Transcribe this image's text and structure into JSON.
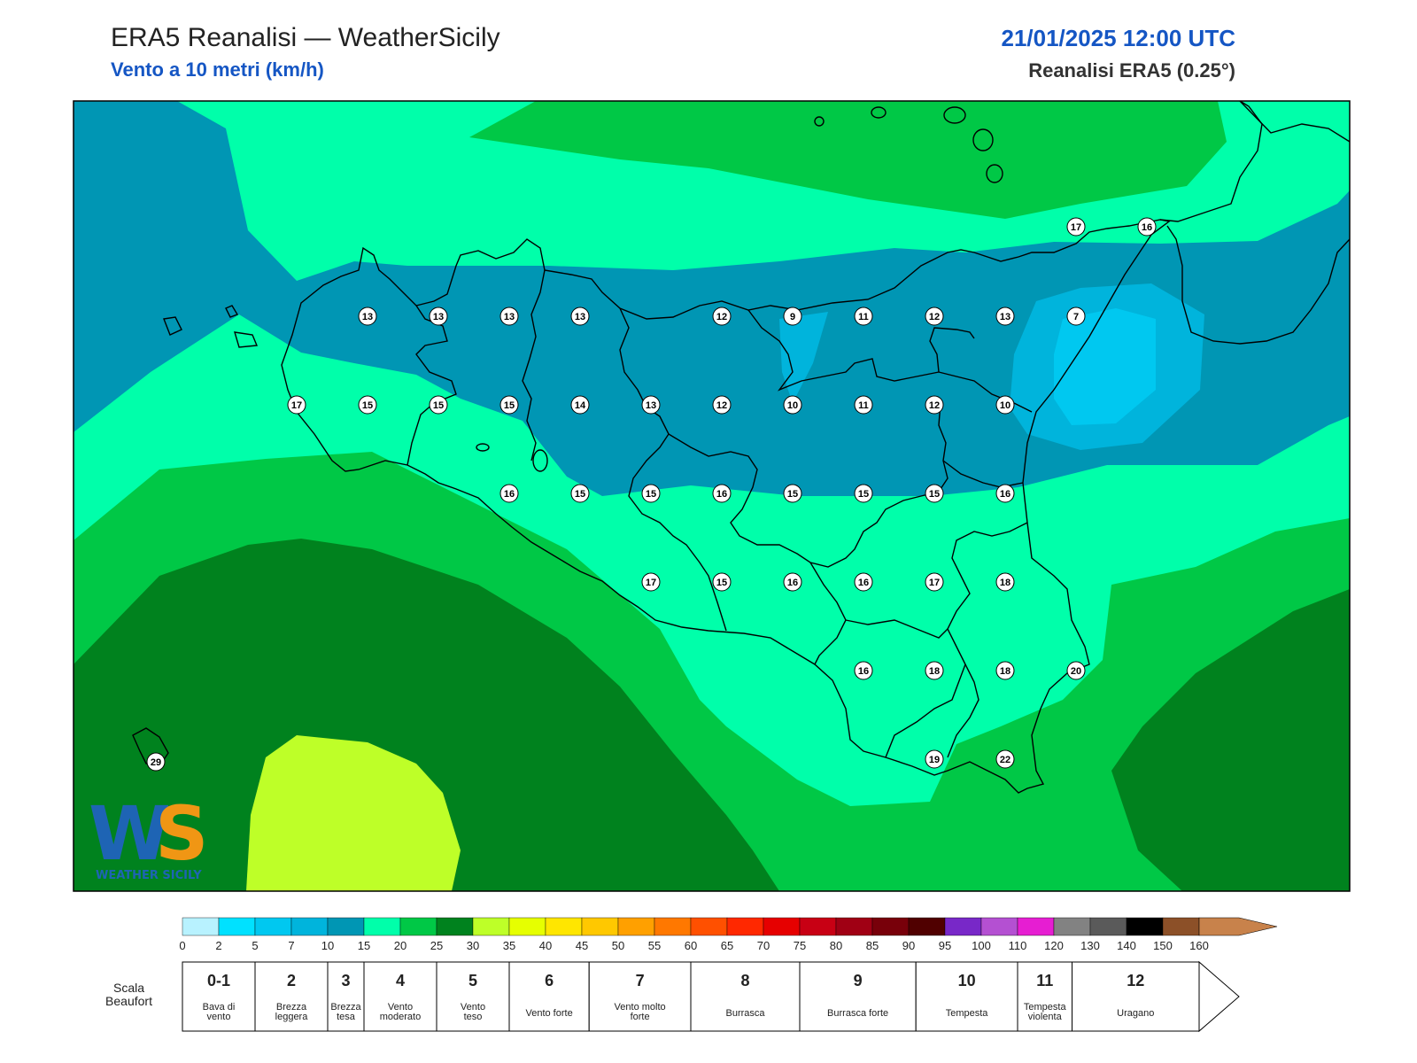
{
  "header": {
    "title": "ERA5 Reanalisi — WeatherSicily",
    "subtitle": "Vento a 10 metri (km/h)",
    "datetime": "21/01/2025 12:00 UTC",
    "source": "Reanalisi ERA5 (0.25°)"
  },
  "logo": {
    "text": "WEATHER SICILY",
    "letters": "WS"
  },
  "stations": [
    {
      "value": "13",
      "col": 4,
      "row": 0
    },
    {
      "value": "13",
      "col": 5,
      "row": 0
    },
    {
      "value": "13",
      "col": 6,
      "row": 0
    },
    {
      "value": "13",
      "col": 7,
      "row": 0
    },
    {
      "value": "12",
      "col": 9,
      "row": 0
    },
    {
      "value": "9",
      "col": 10,
      "row": 0
    },
    {
      "value": "11",
      "col": 11,
      "row": 0
    },
    {
      "value": "12",
      "col": 12,
      "row": 0
    },
    {
      "value": "13",
      "col": 13,
      "row": 0
    },
    {
      "value": "7",
      "col": 14,
      "row": 0
    },
    {
      "value": "17",
      "col": 3,
      "row": 1
    },
    {
      "value": "15",
      "col": 4,
      "row": 1
    },
    {
      "value": "15",
      "col": 5,
      "row": 1
    },
    {
      "value": "15",
      "col": 6,
      "row": 1
    },
    {
      "value": "14",
      "col": 7,
      "row": 1
    },
    {
      "value": "13",
      "col": 8,
      "row": 1
    },
    {
      "value": "12",
      "col": 9,
      "row": 1
    },
    {
      "value": "10",
      "col": 10,
      "row": 1
    },
    {
      "value": "11",
      "col": 11,
      "row": 1
    },
    {
      "value": "12",
      "col": 12,
      "row": 1
    },
    {
      "value": "10",
      "col": 13,
      "row": 1
    },
    {
      "value": "16",
      "col": 6,
      "row": 2
    },
    {
      "value": "15",
      "col": 7,
      "row": 2
    },
    {
      "value": "15",
      "col": 8,
      "row": 2
    },
    {
      "value": "16",
      "col": 9,
      "row": 2
    },
    {
      "value": "15",
      "col": 10,
      "row": 2
    },
    {
      "value": "15",
      "col": 11,
      "row": 2
    },
    {
      "value": "15",
      "col": 12,
      "row": 2
    },
    {
      "value": "16",
      "col": 13,
      "row": 2
    },
    {
      "value": "17",
      "col": 8,
      "row": 3
    },
    {
      "value": "15",
      "col": 9,
      "row": 3
    },
    {
      "value": "16",
      "col": 10,
      "row": 3
    },
    {
      "value": "16",
      "col": 11,
      "row": 3
    },
    {
      "value": "17",
      "col": 12,
      "row": 3
    },
    {
      "value": "18",
      "col": 13,
      "row": 3
    },
    {
      "value": "16",
      "col": 11,
      "row": 4
    },
    {
      "value": "18",
      "col": 12,
      "row": 4
    },
    {
      "value": "18",
      "col": 13,
      "row": 4
    },
    {
      "value": "20",
      "col": 14,
      "row": 4
    },
    {
      "value": "19",
      "col": 12,
      "row": 5
    },
    {
      "value": "22",
      "col": 13,
      "row": 5
    },
    {
      "value": "17",
      "col": 14,
      "row": -1
    },
    {
      "value": "16",
      "col": 15,
      "row": -1
    },
    {
      "value": "29",
      "col": 1,
      "row": 5
    }
  ],
  "colorbar": {
    "ticks": [
      "0",
      "2",
      "5",
      "7",
      "10",
      "15",
      "20",
      "25",
      "30",
      "35",
      "40",
      "45",
      "50",
      "55",
      "60",
      "65",
      "70",
      "75",
      "80",
      "85",
      "90",
      "95",
      "100",
      "110",
      "120",
      "130",
      "140",
      "150",
      "160"
    ],
    "colors": [
      "#b8f2ff",
      "#00e1ff",
      "#00c8f0",
      "#00b4dc",
      "#0096b4",
      "#00ffaa",
      "#00c846",
      "#00821e",
      "#beff28",
      "#e6ff00",
      "#ffe600",
      "#ffc800",
      "#ffa000",
      "#ff7800",
      "#ff5000",
      "#ff2800",
      "#e60000",
      "#c80014",
      "#a00014",
      "#78000a",
      "#500000",
      "#7828c8",
      "#b450d2",
      "#e61ed2",
      "#828282",
      "#5a5a5a",
      "#000000",
      "#8c5028",
      "#c8824b"
    ]
  },
  "beaufort": {
    "label": "Scala Beaufort",
    "cells": [
      {
        "force": "0-1",
        "name": "Bava di vento",
        "from": 0,
        "to": 2
      },
      {
        "force": "2",
        "name": "Brezza leggera",
        "from": 2,
        "to": 4
      },
      {
        "force": "3",
        "name": "Brezza tesa",
        "from": 4,
        "to": 5
      },
      {
        "force": "4",
        "name": "Vento moderato",
        "from": 5,
        "to": 7
      },
      {
        "force": "5",
        "name": "Vento teso",
        "from": 7,
        "to": 9
      },
      {
        "force": "6",
        "name": "Vento forte",
        "from": 9,
        "to": 11.2
      },
      {
        "force": "7",
        "name": "Vento molto forte",
        "from": 11.2,
        "to": 14
      },
      {
        "force": "8",
        "name": "Burrasca",
        "from": 14,
        "to": 17
      },
      {
        "force": "9",
        "name": "Burrasca forte",
        "from": 17,
        "to": 20.2
      },
      {
        "force": "10",
        "name": "Tempesta",
        "from": 20.2,
        "to": 23
      },
      {
        "force": "11",
        "name": "Tempesta violenta",
        "from": 23,
        "to": 24.5
      },
      {
        "force": "12",
        "name": "Uragano",
        "from": 24.5,
        "to": 28
      }
    ]
  }
}
